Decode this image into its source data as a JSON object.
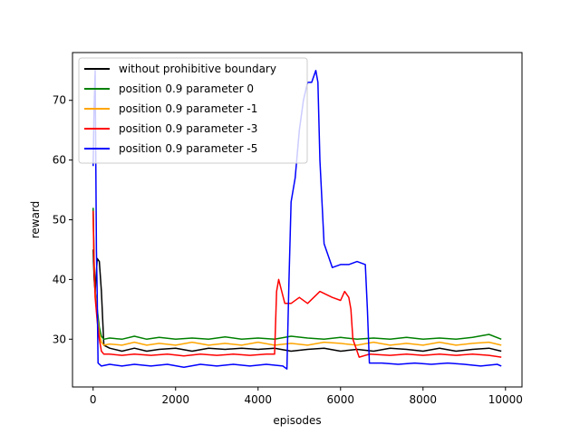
{
  "chart_data": {
    "type": "line",
    "xlabel": "episodes",
    "ylabel": "reward",
    "xlim": [
      -500,
      10400
    ],
    "ylim": [
      22,
      78
    ],
    "xticks": [
      0,
      2000,
      4000,
      6000,
      8000,
      10000
    ],
    "yticks": [
      30,
      40,
      50,
      60,
      70
    ],
    "xtick_labels": [
      "0",
      "2000",
      "4000",
      "6000",
      "8000",
      "10000"
    ],
    "ytick_labels": [
      "30",
      "40",
      "50",
      "60",
      "70"
    ],
    "grid": false,
    "legend_position": "upper-left",
    "series": [
      {
        "name": "without prohibitive boundary",
        "color": "#000000",
        "x": [
          0,
          25,
          50,
          100,
          150,
          200,
          260,
          400,
          700,
          1000,
          1300,
          1600,
          2000,
          2400,
          2800,
          3200,
          3600,
          4000,
          4400,
          4800,
          5200,
          5600,
          6000,
          6400,
          6800,
          7200,
          7600,
          8000,
          8400,
          8800,
          9200,
          9600,
          9900
        ],
        "y": [
          45,
          40,
          38,
          43.5,
          43,
          38,
          29,
          28.5,
          28,
          28.5,
          28,
          28.3,
          28.5,
          28,
          28.5,
          28.3,
          28.5,
          28.3,
          28.5,
          28,
          28.3,
          28.5,
          28,
          28.3,
          28,
          28.5,
          28.3,
          28,
          28.5,
          28,
          28.3,
          28.5,
          28
        ]
      },
      {
        "name": "position 0.9 parameter 0",
        "color": "#008000",
        "x": [
          0,
          25,
          50,
          100,
          150,
          200,
          260,
          400,
          700,
          1000,
          1300,
          1600,
          2000,
          2400,
          2800,
          3200,
          3600,
          4000,
          4400,
          4800,
          5200,
          5600,
          6000,
          6400,
          6800,
          7200,
          7600,
          8000,
          8400,
          8800,
          9200,
          9600,
          9900
        ],
        "y": [
          52,
          42,
          38,
          35,
          32,
          30.5,
          30,
          30.2,
          30,
          30.5,
          30,
          30.3,
          30,
          30.2,
          30,
          30.4,
          30,
          30.2,
          30,
          30.5,
          30.2,
          30,
          30.3,
          30,
          30.2,
          30,
          30.3,
          30,
          30.2,
          30,
          30.3,
          30.8,
          30
        ]
      },
      {
        "name": "position 0.9 parameter -1",
        "color": "#FFA500",
        "x": [
          0,
          25,
          50,
          100,
          150,
          200,
          260,
          400,
          700,
          1000,
          1300,
          1600,
          2000,
          2400,
          2800,
          3200,
          3600,
          4000,
          4400,
          4800,
          5200,
          5600,
          6000,
          6400,
          6800,
          7200,
          7600,
          8000,
          8400,
          8800,
          9200,
          9600,
          9900
        ],
        "y": [
          50,
          42,
          38,
          34,
          31,
          29.5,
          29,
          29.2,
          29,
          29.5,
          29,
          29.3,
          29,
          29.5,
          29,
          29.3,
          29,
          29.5,
          29,
          29.3,
          29,
          29.5,
          29.3,
          29,
          29.5,
          29,
          29.3,
          29,
          29.5,
          29,
          29.3,
          29.5,
          29
        ]
      },
      {
        "name": "position 0.9 parameter -3",
        "color": "#FF0000",
        "x": [
          0,
          25,
          50,
          100,
          150,
          200,
          260,
          400,
          700,
          1000,
          1400,
          1800,
          2200,
          2600,
          3000,
          3400,
          3800,
          4200,
          4400,
          4450,
          4500,
          4650,
          4800,
          5000,
          5200,
          5500,
          5800,
          6000,
          6100,
          6200,
          6250,
          6300,
          6450,
          6700,
          7200,
          7600,
          8000,
          8400,
          8800,
          9200,
          9600,
          9900
        ],
        "y": [
          51.5,
          42,
          37,
          33,
          30,
          28,
          27.5,
          27.5,
          27.3,
          27.5,
          27.3,
          27.5,
          27.2,
          27.5,
          27.3,
          27.5,
          27.3,
          27.5,
          27.5,
          38,
          40,
          36,
          36,
          37,
          36,
          38,
          37,
          36.5,
          38,
          37,
          35,
          30,
          27,
          27.5,
          27.3,
          27.5,
          27.3,
          27.5,
          27.3,
          27.5,
          27.3,
          27
        ]
      },
      {
        "name": "position 0.9 parameter -5",
        "color": "#0000FF",
        "x": [
          0,
          20,
          50,
          80,
          100,
          120,
          200,
          400,
          700,
          1000,
          1400,
          1800,
          2200,
          2600,
          3000,
          3400,
          3800,
          4200,
          4600,
          4700,
          4750,
          4800,
          4900,
          5000,
          5100,
          5200,
          5300,
          5400,
          5450,
          5500,
          5600,
          5800,
          6000,
          6200,
          6400,
          6600,
          6650,
          6700,
          7000,
          7400,
          7800,
          8200,
          8600,
          9000,
          9400,
          9800,
          9900
        ],
        "y": [
          59,
          68,
          75,
          45,
          37,
          26,
          25.5,
          25.8,
          25.5,
          25.8,
          25.5,
          25.8,
          25.3,
          25.8,
          25.5,
          25.8,
          25.5,
          25.8,
          25.5,
          25,
          40,
          53,
          57,
          65,
          70,
          73,
          73,
          75,
          73,
          60,
          46,
          42,
          42.5,
          42.5,
          43,
          42.5,
          35,
          26,
          26,
          25.8,
          26,
          25.8,
          26,
          25.8,
          25.5,
          25.8,
          25.5
        ]
      }
    ]
  }
}
